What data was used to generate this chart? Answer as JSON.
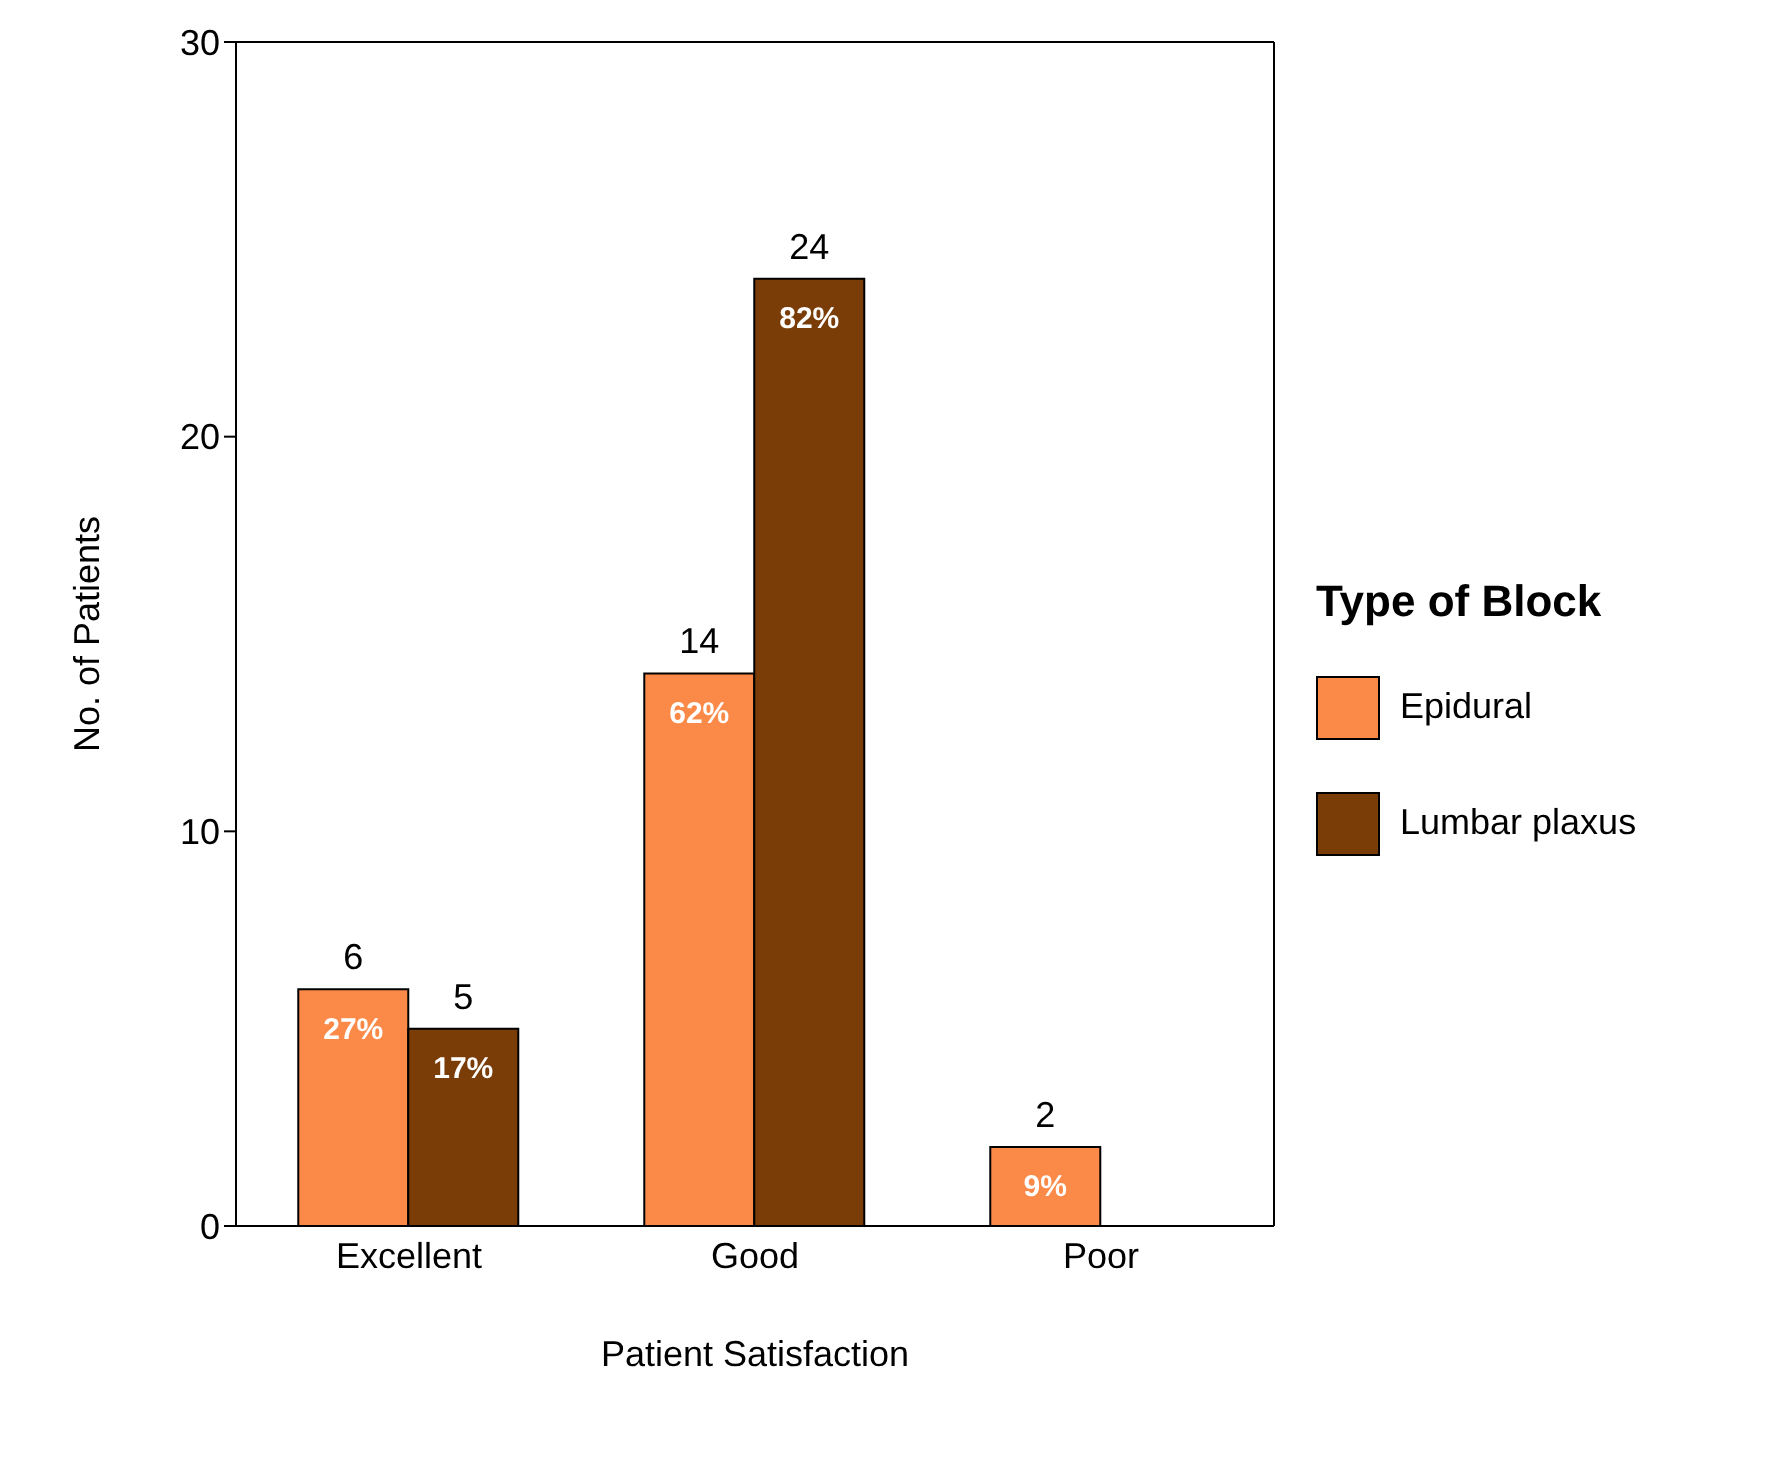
{
  "chart_data": {
    "type": "bar",
    "xlabel": "Patient Satisfaction",
    "ylabel": "No. of Patients",
    "legend_title": "Type of Block",
    "categories": [
      "Excellent",
      "Good",
      "Poor"
    ],
    "series": [
      {
        "name": "Epidural",
        "color": "#fb8a48",
        "values": [
          6,
          14,
          2
        ]
      },
      {
        "name": "Lumbar plaxus",
        "color": "#7a3d07",
        "values": [
          5,
          24,
          null
        ]
      }
    ],
    "annotations": [
      {
        "text": "27%",
        "x": "Excellent",
        "y": 6
      },
      {
        "text": "17%",
        "x": "Excellent",
        "y": 5
      },
      {
        "text": "62%",
        "x": "Good",
        "y": 14
      },
      {
        "text": "82%",
        "x": "Good",
        "y": 24
      },
      {
        "text": "9%",
        "x": "Poor",
        "y": 2
      }
    ],
    "ylim": [
      0,
      30
    ],
    "yticks": [
      0,
      10,
      20,
      30
    ],
    "grid": false,
    "legend": "right",
    "data_labels": true
  }
}
